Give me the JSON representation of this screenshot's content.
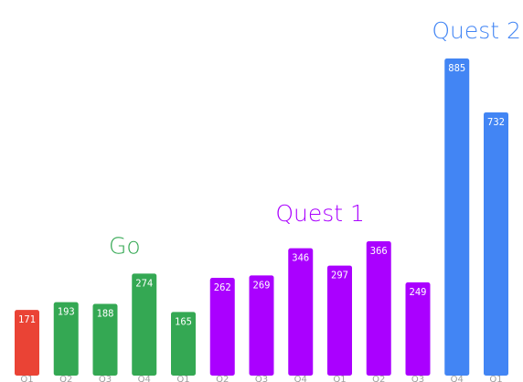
{
  "chart_data": {
    "type": "bar",
    "categories": [
      "Q1",
      "Q2",
      "Q3",
      "Q4",
      "Q1",
      "Q2",
      "Q3",
      "Q4",
      "Q1",
      "Q2",
      "Q3",
      "Q4",
      "Q1"
    ],
    "values": [
      171,
      193,
      188,
      274,
      165,
      262,
      269,
      346,
      297,
      366,
      249,
      885,
      732
    ],
    "bar_colors": [
      "#ea4335",
      "#34a853",
      "#34a853",
      "#34a853",
      "#34a853",
      "#aa00ff",
      "#aa00ff",
      "#aa00ff",
      "#aa00ff",
      "#aa00ff",
      "#aa00ff",
      "#4285f4",
      "#4285f4"
    ],
    "groups": [
      {
        "label": "Go",
        "color": "#34a853",
        "start": 1,
        "end": 4
      },
      {
        "label": "Quest 1",
        "color": "#aa00ff",
        "start": 5,
        "end": 10
      },
      {
        "label": "Quest 2",
        "color": "#4285f4",
        "start": 11,
        "end": 12
      }
    ],
    "ylim": [
      0,
      885
    ],
    "grid": false,
    "legend": "none",
    "title": "",
    "xlabel": "",
    "ylabel": ""
  }
}
